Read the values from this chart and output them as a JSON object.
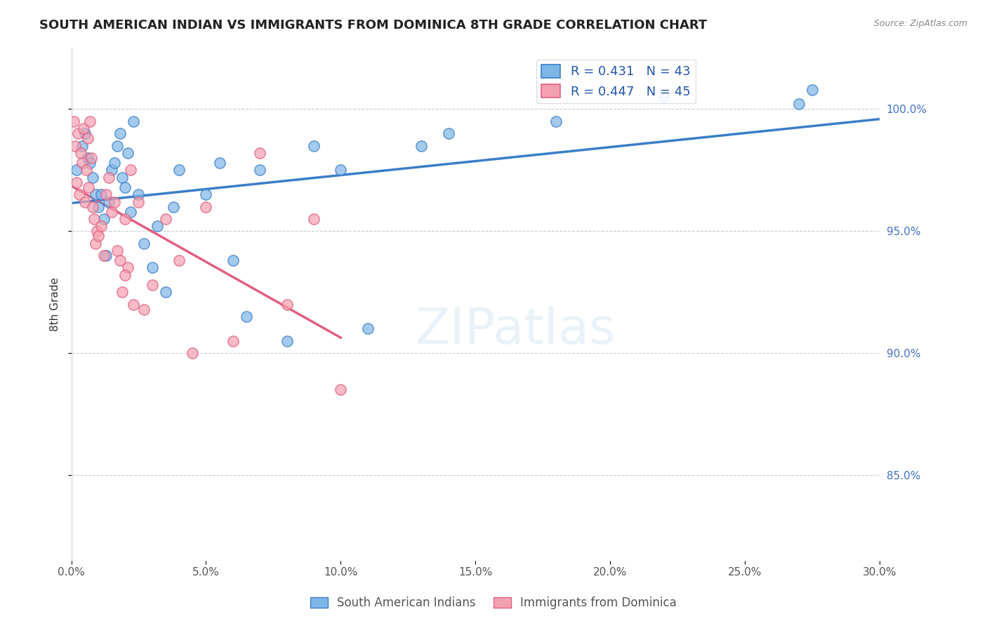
{
  "title": "SOUTH AMERICAN INDIAN VS IMMIGRANTS FROM DOMINICA 8TH GRADE CORRELATION CHART",
  "source": "Source: ZipAtlas.com",
  "ylabel": "8th Grade",
  "xlim": [
    0.0,
    30.0
  ],
  "ylim": [
    81.5,
    102.5
  ],
  "yticks": [
    85.0,
    90.0,
    95.0,
    100.0
  ],
  "xticks": [
    0.0,
    5.0,
    10.0,
    15.0,
    20.0,
    25.0,
    30.0
  ],
  "blue_label": "South American Indians",
  "pink_label": "Immigrants from Dominica",
  "blue_R": 0.431,
  "blue_N": 43,
  "pink_R": 0.447,
  "pink_N": 45,
  "blue_color": "#7EB6E8",
  "pink_color": "#F4A0B0",
  "blue_line_color": "#3A7EC8",
  "pink_line_color": "#E06080",
  "background_color": "#FFFFFF",
  "blue_scatter_x": [
    0.2,
    0.4,
    0.5,
    0.6,
    0.7,
    0.8,
    0.9,
    1.0,
    1.1,
    1.2,
    1.3,
    1.4,
    1.5,
    1.6,
    1.7,
    1.8,
    1.9,
    2.0,
    2.1,
    2.2,
    2.3,
    2.5,
    2.7,
    3.0,
    3.2,
    3.5,
    3.8,
    4.0,
    5.0,
    5.5,
    6.0,
    6.5,
    7.0,
    8.0,
    9.0,
    10.0,
    11.0,
    13.0,
    14.0,
    18.0,
    22.0,
    27.0,
    27.5
  ],
  "blue_scatter_y": [
    97.5,
    98.5,
    99.0,
    98.0,
    97.8,
    97.2,
    96.5,
    96.0,
    96.5,
    95.5,
    94.0,
    96.2,
    97.5,
    97.8,
    98.5,
    99.0,
    97.2,
    96.8,
    98.2,
    95.8,
    99.5,
    96.5,
    94.5,
    93.5,
    95.2,
    92.5,
    96.0,
    97.5,
    96.5,
    97.8,
    93.8,
    91.5,
    97.5,
    90.5,
    98.5,
    97.5,
    91.0,
    98.5,
    99.0,
    99.5,
    100.5,
    100.2,
    100.8
  ],
  "pink_scatter_x": [
    0.1,
    0.15,
    0.2,
    0.25,
    0.3,
    0.35,
    0.4,
    0.45,
    0.5,
    0.55,
    0.6,
    0.65,
    0.7,
    0.75,
    0.8,
    0.85,
    0.9,
    0.95,
    1.0,
    1.1,
    1.2,
    1.3,
    1.4,
    1.5,
    1.6,
    1.7,
    1.8,
    1.9,
    2.0,
    2.1,
    2.2,
    2.3,
    2.5,
    2.7,
    3.0,
    3.5,
    4.0,
    4.5,
    5.0,
    6.0,
    7.0,
    8.0,
    9.0,
    10.0,
    2.0
  ],
  "pink_scatter_y": [
    99.5,
    98.5,
    97.0,
    99.0,
    96.5,
    98.2,
    97.8,
    99.2,
    96.2,
    97.5,
    98.8,
    96.8,
    99.5,
    98.0,
    96.0,
    95.5,
    94.5,
    95.0,
    94.8,
    95.2,
    94.0,
    96.5,
    97.2,
    95.8,
    96.2,
    94.2,
    93.8,
    92.5,
    95.5,
    93.5,
    97.5,
    92.0,
    96.2,
    91.8,
    92.8,
    95.5,
    93.8,
    90.0,
    96.0,
    90.5,
    98.2,
    92.0,
    95.5,
    88.5,
    93.2
  ]
}
